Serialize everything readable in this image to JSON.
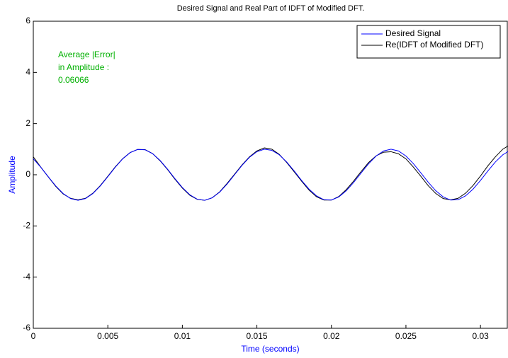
{
  "chart_data": {
    "type": "line",
    "title": "Desired Signal and Real Part of IDFT of Modified DFT.",
    "x_label": "Time (seconds)",
    "y_label": "Amplitude",
    "x": [
      0,
      0.0005,
      0.001,
      0.0015,
      0.002,
      0.0025,
      0.003,
      0.0035,
      0.004,
      0.0045,
      0.005,
      0.0055,
      0.006,
      0.0065,
      0.007,
      0.0075,
      0.008,
      0.0085,
      0.009,
      0.0095,
      0.01,
      0.0105,
      0.011,
      0.0115,
      0.012,
      0.0125,
      0.013,
      0.0135,
      0.014,
      0.0145,
      0.015,
      0.0155,
      0.016,
      0.0165,
      0.017,
      0.0175,
      0.018,
      0.0185,
      0.019,
      0.0195,
      0.02,
      0.0205,
      0.021,
      0.0215,
      0.022,
      0.0225,
      0.023,
      0.0235,
      0.024,
      0.0245,
      0.025,
      0.0255,
      0.026,
      0.0265,
      0.027,
      0.0275,
      0.028,
      0.0285,
      0.029,
      0.0295,
      0.03,
      0.0305,
      0.031,
      0.0315,
      0.032
    ],
    "series": [
      {
        "name": "Desired Signal",
        "color": "#0000ff",
        "values": [
          0.623,
          0.295,
          -0.075,
          -0.434,
          -0.733,
          -0.931,
          -1,
          -0.931,
          -0.733,
          -0.434,
          -0.075,
          0.295,
          0.623,
          0.866,
          0.989,
          0.975,
          0.826,
          0.563,
          0.223,
          -0.149,
          -0.5,
          -0.782,
          -0.956,
          -0.997,
          -0.901,
          -0.68,
          -0.365,
          0,
          0.365,
          0.68,
          0.901,
          0.997,
          0.956,
          0.782,
          0.5,
          0.149,
          -0.223,
          -0.563,
          -0.826,
          -0.975,
          -0.989,
          -0.866,
          -0.623,
          -0.295,
          0.075,
          0.434,
          0.733,
          0.931,
          1,
          0.931,
          0.733,
          0.434,
          0.075,
          -0.295,
          -0.623,
          -0.866,
          -0.989,
          -0.975,
          -0.826,
          -0.563,
          -0.223,
          0.149,
          0.5,
          0.782,
          0.956
        ]
      },
      {
        "name": "Re(IDFT of Modified DFT)",
        "color": "#000000",
        "values": [
          0.7,
          0.3,
          -0.08,
          -0.45,
          -0.75,
          -0.92,
          -0.98,
          -0.92,
          -0.72,
          -0.42,
          -0.06,
          0.31,
          0.63,
          0.87,
          0.99,
          0.98,
          0.83,
          0.55,
          0.21,
          -0.17,
          -0.52,
          -0.8,
          -0.96,
          -1,
          -0.9,
          -0.67,
          -0.34,
          0.02,
          0.38,
          0.7,
          0.93,
          1.05,
          1.0,
          0.8,
          0.48,
          0.12,
          -0.25,
          -0.6,
          -0.86,
          -0.99,
          -0.99,
          -0.85,
          -0.58,
          -0.24,
          0.13,
          0.48,
          0.74,
          0.88,
          0.9,
          0.82,
          0.62,
          0.3,
          -0.06,
          -0.43,
          -0.73,
          -0.93,
          -0.98,
          -0.92,
          -0.72,
          -0.42,
          -0.05,
          0.35,
          0.7,
          1.0,
          1.18
        ]
      }
    ],
    "xlim": [
      0,
      0.0318
    ],
    "ylim": [
      -6,
      6
    ],
    "xticks": [
      0,
      0.005,
      0.01,
      0.015,
      0.02,
      0.025,
      0.03
    ],
    "yticks": [
      -6,
      -4,
      -2,
      0,
      2,
      4,
      6
    ],
    "grid": false,
    "legend": "upper right",
    "annotation": [
      "Average |Error|",
      "in Amplitude  :",
      "0.06066"
    ],
    "annotation_color": "#00b000",
    "axis_label_color": "#0000ff"
  }
}
